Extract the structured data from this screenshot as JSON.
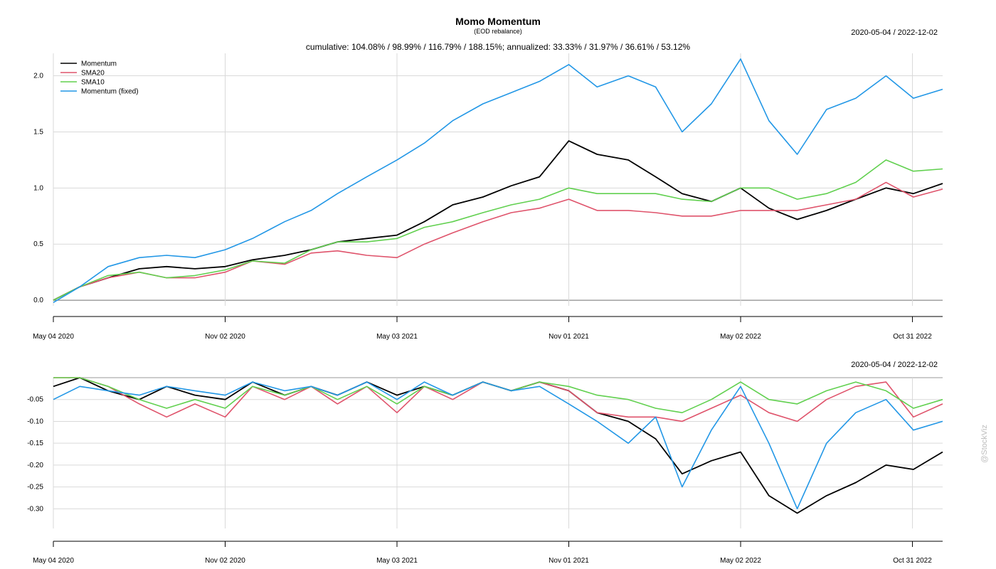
{
  "header": {
    "title": "Momo Momentum",
    "subtitle": "(EOD rebalance)",
    "stats": "cumulative: 104.08% / 98.99% / 116.79% / 188.15%; annualized: 33.33% / 31.97% / 36.61% / 53.12%",
    "range_top": "2020-05-04 / 2022-12-02",
    "range_bottom": "2020-05-04 / 2022-12-02"
  },
  "watermark": "@StockViz",
  "chart_data": [
    {
      "type": "line",
      "panel": "cumulative returns",
      "x_ticks": [
        "May 04 2020",
        "Nov 02 2020",
        "May 03 2021",
        "Nov 01 2021",
        "May 02 2022",
        "Oct 31 2022"
      ],
      "y_ticks": [
        "0.0",
        "0.5",
        "1.0",
        "1.5",
        "2.0"
      ],
      "ylim": [
        -0.05,
        2.2
      ],
      "grid": true,
      "legend_position": "top-left",
      "x": [
        "2020-05-04",
        "2020-06-01",
        "2020-07-01",
        "2020-08-03",
        "2020-09-01",
        "2020-10-01",
        "2020-11-02",
        "2020-12-01",
        "2021-01-04",
        "2021-02-01",
        "2021-03-01",
        "2021-04-01",
        "2021-05-03",
        "2021-06-01",
        "2021-07-01",
        "2021-08-02",
        "2021-09-01",
        "2021-10-01",
        "2021-11-01",
        "2021-12-01",
        "2022-01-03",
        "2022-02-01",
        "2022-03-01",
        "2022-04-01",
        "2022-05-02",
        "2022-06-01",
        "2022-07-01",
        "2022-08-01",
        "2022-09-01",
        "2022-10-03",
        "2022-11-01",
        "2022-12-02"
      ],
      "series": [
        {
          "name": "Momentum",
          "color": "#000000",
          "values": [
            0.0,
            0.12,
            0.2,
            0.28,
            0.3,
            0.28,
            0.3,
            0.36,
            0.4,
            0.45,
            0.52,
            0.55,
            0.58,
            0.7,
            0.85,
            0.92,
            1.02,
            1.1,
            1.42,
            1.3,
            1.25,
            1.1,
            0.95,
            0.88,
            1.0,
            0.82,
            0.72,
            0.8,
            0.9,
            1.0,
            0.95,
            1.04
          ]
        },
        {
          "name": "SMA20",
          "color": "#DF536B",
          "values": [
            0.0,
            0.12,
            0.2,
            0.25,
            0.2,
            0.2,
            0.25,
            0.35,
            0.32,
            0.42,
            0.44,
            0.4,
            0.38,
            0.5,
            0.6,
            0.7,
            0.78,
            0.82,
            0.9,
            0.8,
            0.8,
            0.78,
            0.75,
            0.75,
            0.8,
            0.8,
            0.8,
            0.85,
            0.9,
            1.05,
            0.92,
            0.99
          ]
        },
        {
          "name": "SMA10",
          "color": "#61D04F",
          "values": [
            0.0,
            0.12,
            0.22,
            0.25,
            0.2,
            0.22,
            0.27,
            0.35,
            0.33,
            0.45,
            0.52,
            0.52,
            0.55,
            0.65,
            0.7,
            0.78,
            0.85,
            0.9,
            1.0,
            0.95,
            0.95,
            0.95,
            0.9,
            0.88,
            1.0,
            1.0,
            0.9,
            0.95,
            1.05,
            1.25,
            1.15,
            1.17
          ]
        },
        {
          "name": "Momentum (fixed)",
          "color": "#2297E6",
          "values": [
            -0.02,
            0.12,
            0.3,
            0.38,
            0.4,
            0.38,
            0.45,
            0.55,
            0.7,
            0.8,
            0.95,
            1.1,
            1.25,
            1.4,
            1.6,
            1.75,
            1.85,
            1.95,
            2.1,
            1.9,
            2.0,
            1.9,
            1.5,
            1.75,
            2.15,
            1.6,
            1.3,
            1.7,
            1.8,
            2.0,
            1.8,
            1.88
          ]
        }
      ]
    },
    {
      "type": "line",
      "panel": "drawdowns",
      "x_ticks": [
        "May 04 2020",
        "Nov 02 2020",
        "May 03 2021",
        "Nov 01 2021",
        "May 02 2022",
        "Oct 31 2022"
      ],
      "y_ticks": [
        "-0.05",
        "-0.10",
        "-0.15",
        "-0.20",
        "-0.25",
        "-0.30"
      ],
      "ylim": [
        -0.345,
        0.0
      ],
      "grid": true,
      "x": [
        "2020-05-04",
        "2020-06-01",
        "2020-07-01",
        "2020-08-03",
        "2020-09-01",
        "2020-10-01",
        "2020-11-02",
        "2020-12-01",
        "2021-01-04",
        "2021-02-01",
        "2021-03-01",
        "2021-04-01",
        "2021-05-03",
        "2021-06-01",
        "2021-07-01",
        "2021-08-02",
        "2021-09-01",
        "2021-10-01",
        "2021-11-01",
        "2021-12-01",
        "2022-01-03",
        "2022-02-01",
        "2022-03-01",
        "2022-04-01",
        "2022-05-02",
        "2022-06-01",
        "2022-07-01",
        "2022-08-01",
        "2022-09-01",
        "2022-10-03",
        "2022-11-01",
        "2022-12-02"
      ],
      "series": [
        {
          "name": "Momentum",
          "color": "#000000",
          "values": [
            -0.02,
            0.0,
            -0.03,
            -0.05,
            -0.02,
            -0.04,
            -0.05,
            -0.01,
            -0.04,
            -0.02,
            -0.04,
            -0.01,
            -0.04,
            -0.02,
            -0.04,
            -0.01,
            -0.03,
            -0.01,
            -0.03,
            -0.08,
            -0.1,
            -0.14,
            -0.22,
            -0.19,
            -0.17,
            -0.27,
            -0.31,
            -0.27,
            -0.24,
            -0.2,
            -0.21,
            -0.17
          ]
        },
        {
          "name": "SMA20",
          "color": "#DF536B",
          "values": [
            0.0,
            0.0,
            -0.02,
            -0.06,
            -0.09,
            -0.06,
            -0.09,
            -0.02,
            -0.05,
            -0.02,
            -0.06,
            -0.02,
            -0.08,
            -0.02,
            -0.05,
            -0.01,
            -0.03,
            -0.01,
            -0.03,
            -0.08,
            -0.09,
            -0.09,
            -0.1,
            -0.07,
            -0.04,
            -0.08,
            -0.1,
            -0.05,
            -0.02,
            -0.01,
            -0.09,
            -0.06
          ]
        },
        {
          "name": "SMA10",
          "color": "#61D04F",
          "values": [
            0.0,
            0.0,
            -0.02,
            -0.05,
            -0.07,
            -0.05,
            -0.07,
            -0.02,
            -0.04,
            -0.02,
            -0.05,
            -0.02,
            -0.06,
            -0.02,
            -0.04,
            -0.01,
            -0.03,
            -0.01,
            -0.02,
            -0.04,
            -0.05,
            -0.07,
            -0.08,
            -0.05,
            -0.01,
            -0.05,
            -0.06,
            -0.03,
            -0.01,
            -0.03,
            -0.07,
            -0.05
          ]
        },
        {
          "name": "Momentum (fixed)",
          "color": "#2297E6",
          "values": [
            -0.05,
            -0.02,
            -0.03,
            -0.04,
            -0.02,
            -0.03,
            -0.04,
            -0.01,
            -0.03,
            -0.02,
            -0.04,
            -0.01,
            -0.05,
            -0.01,
            -0.04,
            -0.01,
            -0.03,
            -0.02,
            -0.06,
            -0.1,
            -0.15,
            -0.09,
            -0.25,
            -0.12,
            -0.02,
            -0.15,
            -0.3,
            -0.15,
            -0.08,
            -0.05,
            -0.12,
            -0.1
          ]
        }
      ]
    }
  ]
}
